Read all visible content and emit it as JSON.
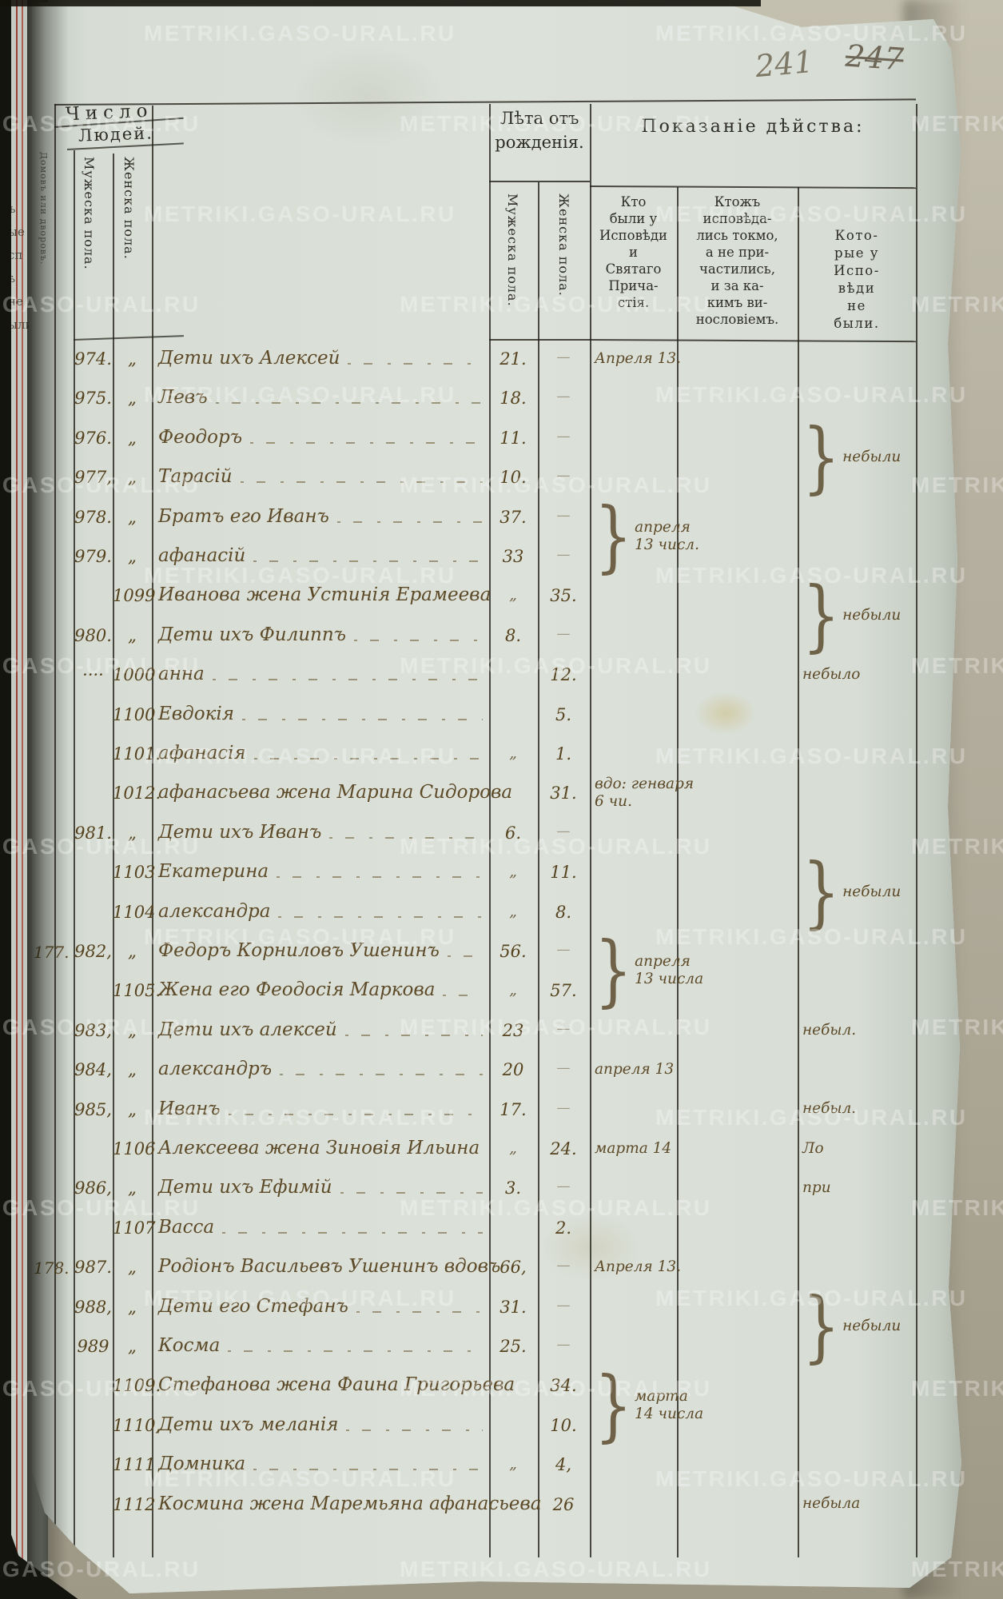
{
  "watermark": {
    "text": "METRIKI.GASO-URAL.RU"
  },
  "page_numbers": {
    "current": "241",
    "crossed": "247"
  },
  "table_header": {
    "count_title": "Число",
    "count_subtitle": "Людей.",
    "col_households": "Домовъ или дворовъ.",
    "col_count_male": "Мужеска пола.",
    "col_count_female": "Женска пола.",
    "age_title_line1": "Лѣта отъ",
    "age_title_line2": "рожденія.",
    "col_age_male": "Мужеска пола.",
    "col_age_female": "Женска пола.",
    "action_title": "Показаніе дѣйства:",
    "col_confessed_lines": [
      "Кто",
      "были у",
      "Исповѣди",
      "и",
      "Святаго",
      "Прича-",
      "стія."
    ],
    "col_confessed_only_lines": [
      "Ктожъ",
      "исповѣда-",
      "лись токмо,",
      "а не при-",
      "частились,",
      "и за ка-",
      "кимъ ви-",
      "нословіемъ."
    ],
    "col_absent_lines": [
      "Кото-",
      "рые у",
      "Испо-",
      "вѣди",
      "не",
      "были."
    ]
  },
  "rows": [
    {
      "household": "",
      "num_m": "974.",
      "num_f": "„",
      "name": "Дети ихъ Алексей",
      "age_m": "21.",
      "age_f": "—"
    },
    {
      "household": "",
      "num_m": "975.",
      "num_f": "„",
      "name": "Левъ",
      "age_m": "18.",
      "age_f": "—"
    },
    {
      "household": "",
      "num_m": "976.",
      "num_f": "„",
      "name": "Феодоръ",
      "age_m": "11.",
      "age_f": "—"
    },
    {
      "household": "",
      "num_m": "977,",
      "num_f": "„",
      "name": "Тарасій",
      "age_m": "10.",
      "age_f": "—"
    },
    {
      "household": "",
      "num_m": "978.",
      "num_f": "„",
      "name": "Братъ его Иванъ",
      "age_m": "37.",
      "age_f": "—"
    },
    {
      "household": "",
      "num_m": "979.",
      "num_f": "„",
      "name": "афанасій",
      "age_m": "33",
      "age_f": "—"
    },
    {
      "household": "",
      "num_m": "",
      "num_f": "1099",
      "name": "Иванова жена Устинія Ерамеева",
      "age_m": "„",
      "age_f": "35."
    },
    {
      "household": "",
      "num_m": "980.",
      "num_f": "„",
      "name": "Дети ихъ Филиппъ",
      "age_m": "8.",
      "age_f": "—"
    },
    {
      "household": "",
      "num_m": "····",
      "num_f": "1000",
      "name": "анна",
      "age_m": "",
      "age_f": "12."
    },
    {
      "household": "",
      "num_m": "",
      "num_f": "1100",
      "name": "Евдокія",
      "age_m": "",
      "age_f": "5."
    },
    {
      "household": "",
      "num_m": "",
      "num_f": "1101.",
      "name": "афанасія",
      "age_m": "„",
      "age_f": "1."
    },
    {
      "household": "",
      "num_m": "",
      "num_f": "1012.",
      "name": "афанасьева жена Марина Сидорова",
      "age_m": "",
      "age_f": "31."
    },
    {
      "household": "",
      "num_m": "981.",
      "num_f": "„",
      "name": "Дети ихъ Иванъ",
      "age_m": "6.",
      "age_f": "—"
    },
    {
      "household": "",
      "num_m": "",
      "num_f": "1103",
      "name": "Екатерина",
      "age_m": "„",
      "age_f": "11."
    },
    {
      "household": "",
      "num_m": "",
      "num_f": "1104",
      "name": "александра",
      "age_m": "„",
      "age_f": "8."
    },
    {
      "household": "177.",
      "num_m": "982,",
      "num_f": "„",
      "name": "Федоръ Корниловъ Ушенинъ",
      "age_m": "56.",
      "age_f": "—"
    },
    {
      "household": "",
      "num_m": "",
      "num_f": "1105.",
      "name": "Жена его Феодосія Маркова",
      "age_m": "„",
      "age_f": "57."
    },
    {
      "household": "",
      "num_m": "983,",
      "num_f": "„",
      "name": "Дети ихъ алексей",
      "age_m": "23",
      "age_f": "—"
    },
    {
      "household": "",
      "num_m": "984,",
      "num_f": "„",
      "name": "александръ",
      "age_m": "20",
      "age_f": "—"
    },
    {
      "household": "",
      "num_m": "985,",
      "num_f": "„",
      "name": "Иванъ",
      "age_m": "17.",
      "age_f": "—"
    },
    {
      "household": "",
      "num_m": "",
      "num_f": "1106",
      "name": "Алексеева жена Зиновія Ильина",
      "age_m": "„",
      "age_f": "24."
    },
    {
      "household": "",
      "num_m": "986,",
      "num_f": "„",
      "name": "Дети ихъ Ефимій",
      "age_m": "3.",
      "age_f": "—"
    },
    {
      "household": "",
      "num_m": "",
      "num_f": "1107",
      "name": "Васса",
      "age_m": "",
      "age_f": "2."
    },
    {
      "household": "178.",
      "num_m": "987.",
      "num_f": "„",
      "name": "Родіонъ Васильевъ Ушенинъ вдовъ",
      "age_m": "66,",
      "age_f": "—"
    },
    {
      "household": "",
      "num_m": "988,",
      "num_f": "„",
      "name": "Дети его Стефанъ",
      "age_m": "31.",
      "age_f": "—"
    },
    {
      "household": "",
      "num_m": "989",
      "num_f": "„",
      "name": "Косма",
      "age_m": "25.",
      "age_f": "—"
    },
    {
      "household": "",
      "num_m": "",
      "num_f": "1109.",
      "name": "Стефанова жена Фаина Григорьева",
      "age_m": "",
      "age_f": "34."
    },
    {
      "household": "",
      "num_m": "",
      "num_f": "1110,",
      "name": "Дети ихъ меланія",
      "age_m": "",
      "age_f": "10."
    },
    {
      "household": "",
      "num_m": "",
      "num_f": "1111",
      "name": "Домника",
      "age_m": "„",
      "age_f": "4,"
    },
    {
      "household": "",
      "num_m": "",
      "num_f": "1112",
      "name": "Космина жена Маремьяна афанасьева",
      "age_m": "",
      "age_f": "26"
    }
  ],
  "annotations": [
    {
      "row": 0,
      "span": 1,
      "column": "confessed",
      "brace": false,
      "lines": [
        "Апреля 13."
      ]
    },
    {
      "row": 2,
      "span": 2,
      "column": "absent",
      "brace": true,
      "lines": [
        "небыли"
      ]
    },
    {
      "row": 4,
      "span": 2,
      "column": "confessed",
      "brace": true,
      "lines": [
        "апреля",
        "13 числ."
      ]
    },
    {
      "row": 6,
      "span": 2,
      "column": "absent",
      "brace": true,
      "lines": [
        "небыли"
      ]
    },
    {
      "row": 8,
      "span": 1,
      "column": "absent",
      "brace": false,
      "lines": [
        "небыло"
      ]
    },
    {
      "row": 11,
      "span": 1,
      "column": "confessed",
      "brace": false,
      "lines": [
        "вдо: генваря",
        "6 чи."
      ]
    },
    {
      "row": 13,
      "span": 2,
      "column": "absent",
      "brace": true,
      "lines": [
        "небыли"
      ]
    },
    {
      "row": 15,
      "span": 2,
      "column": "confessed",
      "brace": true,
      "lines": [
        "апреля",
        "13 числа"
      ]
    },
    {
      "row": 17,
      "span": 1,
      "column": "absent",
      "brace": false,
      "lines": [
        "небыл."
      ]
    },
    {
      "row": 18,
      "span": 1,
      "column": "confessed",
      "brace": false,
      "lines": [
        "апреля 13"
      ]
    },
    {
      "row": 19,
      "span": 1,
      "column": "absent",
      "brace": false,
      "lines": [
        "небыл."
      ]
    },
    {
      "row": 20,
      "span": 1,
      "column": "confessed",
      "brace": false,
      "lines": [
        "марта 14"
      ]
    },
    {
      "row": 20,
      "span": 1,
      "column": "absent",
      "brace": false,
      "lines": [
        "Ло"
      ]
    },
    {
      "row": 21,
      "span": 1,
      "column": "absent",
      "brace": false,
      "lines": [
        "при"
      ]
    },
    {
      "row": 23,
      "span": 1,
      "column": "confessed",
      "brace": false,
      "lines": [
        "Апреля 13."
      ]
    },
    {
      "row": 24,
      "span": 2,
      "column": "absent",
      "brace": true,
      "lines": [
        "небыли"
      ]
    },
    {
      "row": 26,
      "span": 2,
      "column": "confessed",
      "brace": true,
      "lines": [
        "марта",
        "14 числа"
      ]
    },
    {
      "row": 29,
      "span": 1,
      "column": "absent",
      "brace": false,
      "lines": [
        "небыла"
      ]
    }
  ],
  "margin_fragments": [
    "ъ",
    "ые",
    "сп",
    "ѣ",
    "не",
    "ыли"
  ]
}
